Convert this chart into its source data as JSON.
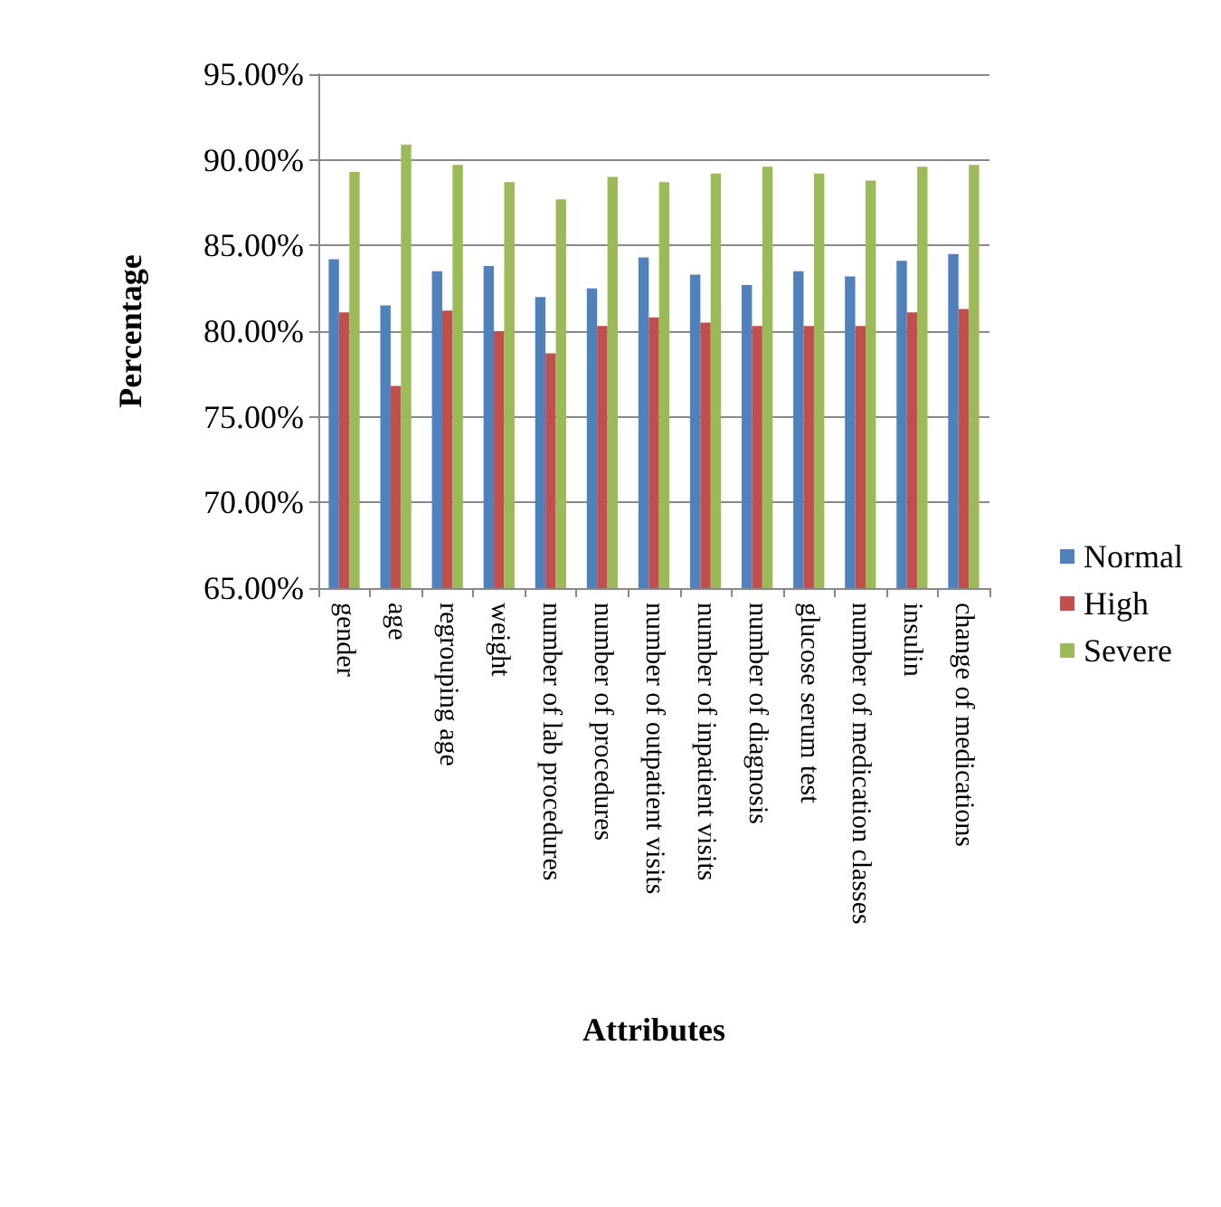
{
  "chart_data": {
    "type": "bar",
    "xlabel": "Attributes",
    "ylabel": "Percentage",
    "categories": [
      "gender",
      "age",
      "regrouping age",
      "weight",
      "number of lab procedures",
      "number of procedures",
      "number of outpatient visits",
      "number of inpatient visits",
      "number of diagnosis",
      "glucose serum test",
      "number of medication classes",
      "insulin",
      "change of medications"
    ],
    "series": [
      {
        "name": "Normal",
        "color": "#4f81bd",
        "values": [
          84.2,
          81.5,
          83.5,
          83.8,
          82.0,
          82.5,
          84.3,
          83.3,
          82.7,
          83.5,
          83.2,
          84.1,
          84.5
        ]
      },
      {
        "name": "High",
        "color": "#c0504d",
        "values": [
          81.1,
          76.8,
          81.2,
          80.0,
          78.7,
          80.3,
          80.8,
          80.5,
          80.3,
          80.3,
          80.3,
          81.1,
          81.3
        ]
      },
      {
        "name": "Severe",
        "color": "#9bbb59",
        "values": [
          89.3,
          90.9,
          89.7,
          88.7,
          87.7,
          89.0,
          88.7,
          89.2,
          89.6,
          89.2,
          88.8,
          89.6,
          89.7
        ]
      }
    ],
    "ylim": [
      65,
      95
    ],
    "yticks": [
      {
        "value": 65,
        "label": "65.00%"
      },
      {
        "value": 70,
        "label": "70.00%"
      },
      {
        "value": 75,
        "label": "75.00%"
      },
      {
        "value": 80,
        "label": "80.00%"
      },
      {
        "value": 85,
        "label": "85.00%"
      },
      {
        "value": 90,
        "label": "90.00%"
      },
      {
        "value": 95,
        "label": "95.00%"
      }
    ],
    "grid": "y",
    "legend": "right"
  }
}
